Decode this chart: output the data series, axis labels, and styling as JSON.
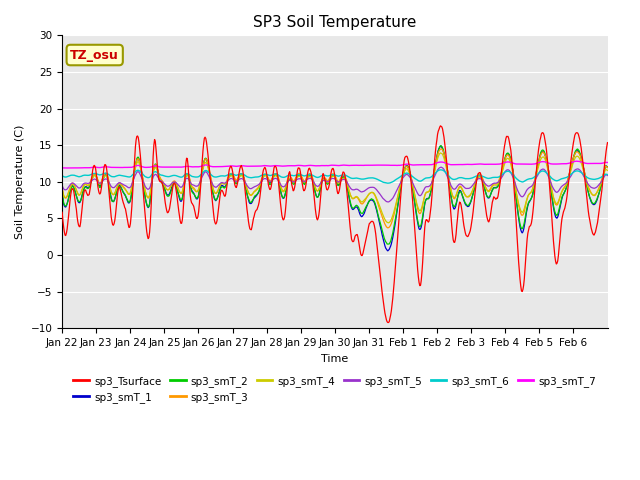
{
  "title": "SP3 Soil Temperature",
  "ylabel": "Soil Temperature (C)",
  "xlabel": "Time",
  "annotation": "TZ_osu",
  "annotation_color": "#cc0000",
  "annotation_bg": "#ffffcc",
  "annotation_edge": "#999900",
  "ylim": [
    -10,
    30
  ],
  "yticks": [
    -10,
    -5,
    0,
    5,
    10,
    15,
    20,
    25,
    30
  ],
  "num_days": 16,
  "plot_bg": "#e8e8e8",
  "fig_bg": "#ffffff",
  "series_colors": {
    "sp3_Tsurface": "#ff0000",
    "sp3_smT_1": "#0000cc",
    "sp3_smT_2": "#00cc00",
    "sp3_smT_3": "#ff9900",
    "sp3_smT_4": "#cccc00",
    "sp3_smT_5": "#9933cc",
    "sp3_smT_6": "#00cccc",
    "sp3_smT_7": "#ff00ff"
  },
  "xtick_labels": [
    "Jan 22",
    "Jan 23",
    "Jan 24",
    "Jan 25",
    "Jan 26",
    "Jan 27",
    "Jan 28",
    "Jan 29",
    "Jan 30",
    "Jan 31",
    "Feb 1",
    "Feb 2",
    "Feb 3",
    "Feb 4",
    "Feb 5",
    "Feb 6"
  ],
  "grid_color": "#ffffff",
  "title_fontsize": 11,
  "label_fontsize": 8,
  "tick_fontsize": 7.5,
  "legend_fontsize": 7.5
}
